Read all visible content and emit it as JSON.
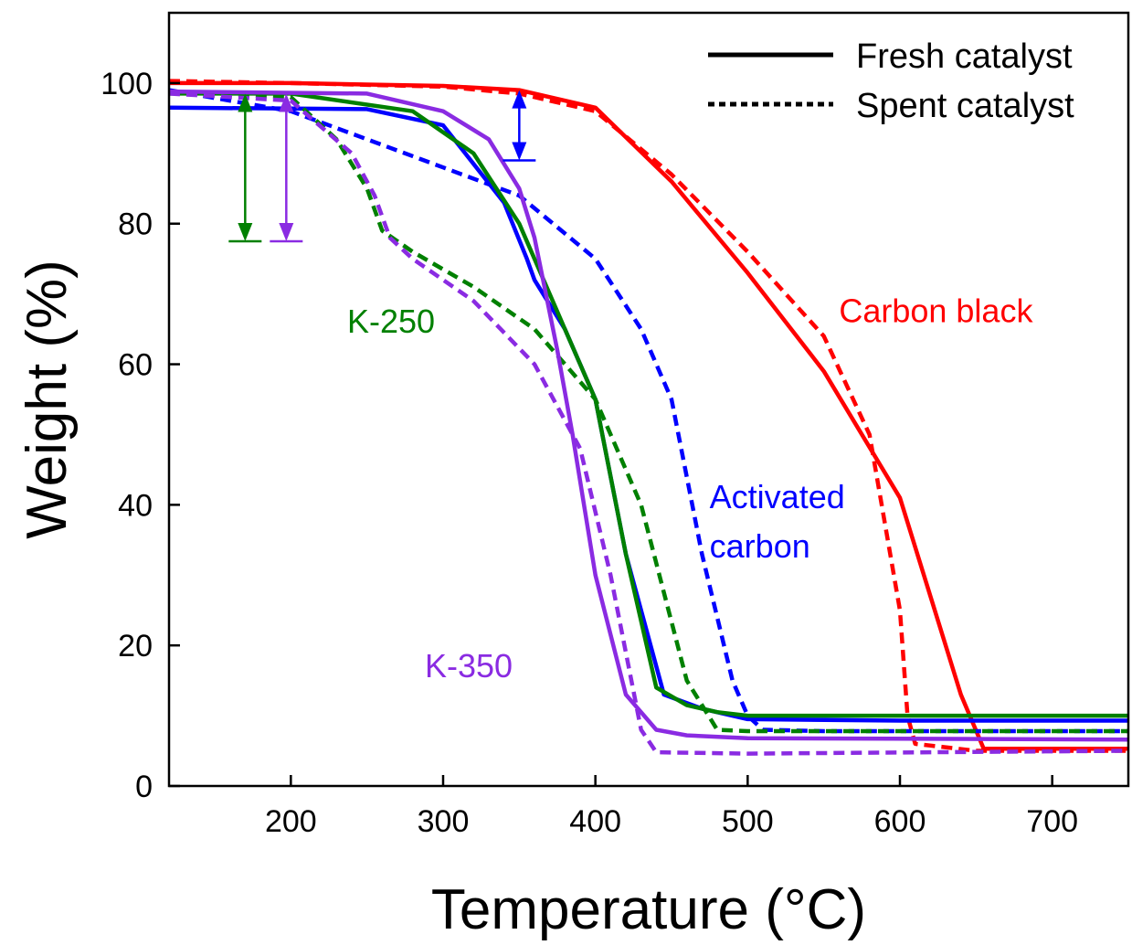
{
  "chart_data": {
    "type": "line",
    "xlabel": "Temperature (°C)",
    "ylabel": "Weight (%)",
    "xlim": [
      120,
      750
    ],
    "ylim": [
      0,
      110
    ],
    "xticks": [
      200,
      300,
      400,
      500,
      600,
      700
    ],
    "yticks": [
      0,
      20,
      40,
      60,
      80,
      100
    ],
    "grid": false,
    "legend": {
      "placement": "top-right",
      "entries": [
        {
          "label": "Fresh catalyst",
          "style": "solid"
        },
        {
          "label": "Spent catalyst",
          "style": "dotted"
        }
      ]
    },
    "series": [
      {
        "name": "Carbon black",
        "color": "#ff0000",
        "style": "solid",
        "x": [
          120,
          200,
          300,
          350,
          400,
          450,
          500,
          550,
          600,
          640,
          655,
          700,
          750
        ],
        "y": [
          100,
          100,
          99.6,
          99,
          96.5,
          86,
          73,
          59,
          41,
          13,
          5.3,
          5.3,
          5.3
        ]
      },
      {
        "name": "Carbon black",
        "color": "#ff0000",
        "style": "dotted",
        "x": [
          120,
          200,
          300,
          350,
          400,
          450,
          500,
          550,
          580,
          600,
          605,
          610,
          650,
          700,
          750
        ],
        "y": [
          100.3,
          100,
          99.5,
          98.5,
          96,
          87,
          76,
          64,
          50,
          25,
          10,
          6,
          5,
          5,
          5
        ]
      },
      {
        "name": "Activated carbon",
        "color": "#0000ff",
        "style": "solid",
        "x": [
          120,
          250,
          300,
          340,
          355,
          360,
          380,
          400,
          420,
          445,
          470,
          500,
          600,
          750
        ],
        "y": [
          96.5,
          96.3,
          94,
          83,
          75,
          72,
          65,
          55,
          33,
          13,
          11,
          9.5,
          9.3,
          9.3
        ]
      },
      {
        "name": "Activated carbon",
        "color": "#0000ff",
        "style": "dotted",
        "x": [
          120,
          200,
          250,
          300,
          350,
          400,
          430,
          450,
          470,
          490,
          500,
          510,
          550,
          750
        ],
        "y": [
          99,
          96,
          92,
          88,
          84,
          75,
          65,
          55,
          33,
          15,
          10,
          8,
          7.8,
          7.8
        ]
      },
      {
        "name": "K-250",
        "color": "#008000",
        "style": "solid",
        "x": [
          120,
          200,
          280,
          320,
          350,
          380,
          400,
          420,
          440,
          460,
          480,
          500,
          750
        ],
        "y": [
          98.5,
          98.5,
          96,
          90,
          80,
          65,
          55,
          33,
          14,
          11.5,
          10.5,
          10,
          10
        ]
      },
      {
        "name": "K-250",
        "color": "#008000",
        "style": "dotted",
        "x": [
          120,
          200,
          230,
          250,
          260,
          280,
          320,
          360,
          400,
          430,
          460,
          480,
          500,
          750
        ],
        "y": [
          98.8,
          98,
          92,
          85,
          79,
          76,
          71,
          65,
          55,
          40,
          15,
          8,
          7.8,
          7.8
        ]
      },
      {
        "name": "K-350",
        "color": "#8a2be2",
        "style": "solid",
        "x": [
          120,
          250,
          300,
          330,
          350,
          360,
          375,
          385,
          400,
          420,
          440,
          460,
          500,
          750
        ],
        "y": [
          98.8,
          98.5,
          96,
          92,
          85,
          78,
          62,
          50,
          30,
          13,
          8,
          7.2,
          6.8,
          6.6
        ]
      },
      {
        "name": "K-350",
        "color": "#8a2be2",
        "style": "dotted",
        "x": [
          120,
          200,
          240,
          255,
          265,
          280,
          320,
          360,
          390,
          410,
          430,
          440,
          500,
          750
        ],
        "y": [
          98.5,
          97.5,
          90,
          84,
          78,
          75,
          69,
          60,
          48,
          30,
          8,
          4.8,
          4.6,
          5
        ]
      }
    ],
    "annotations": [
      {
        "text": "Carbon black",
        "color": "#ff0000",
        "x": 560,
        "y": 66
      },
      {
        "text": "Activated",
        "color": "#0000ff",
        "x": 475,
        "y": 39.5
      },
      {
        "text": "carbon",
        "color": "#0000ff",
        "x": 475,
        "y": 32.5
      },
      {
        "text": "K-250",
        "color": "#008000",
        "x": 237,
        "y": 64.5
      },
      {
        "text": "K-350",
        "color": "#8a2be2",
        "x": 288,
        "y": 15.5
      }
    ],
    "weight_loss_arrows": [
      {
        "color": "#008000",
        "x": 170,
        "y_top": 98.5,
        "y_bottom": 77.5
      },
      {
        "color": "#8a2be2",
        "x": 197,
        "y_top": 98.5,
        "y_bottom": 77.5
      },
      {
        "color": "#0000ff",
        "x": 350,
        "y_top": 99,
        "y_bottom": 89
      }
    ]
  }
}
